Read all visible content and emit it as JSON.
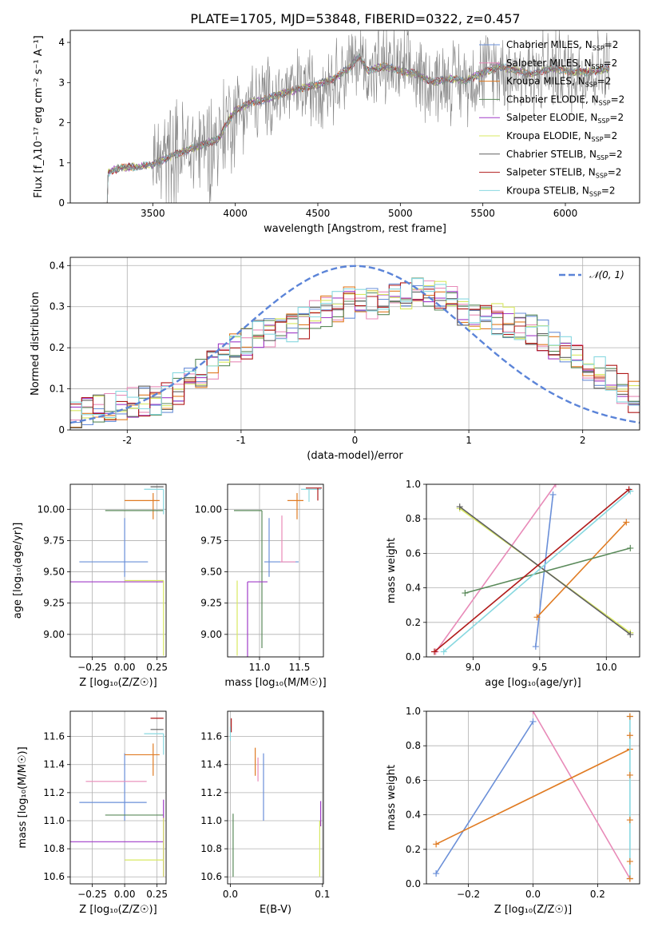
{
  "figure": {
    "title": "PLATE=1705, MJD=53848, FIBERID=0322, z=0.457"
  },
  "chart_data": [
    {
      "id": "spectrum",
      "type": "line",
      "xlabel": "wavelength [Angstrom, rest frame]",
      "ylabel": "Flux [f_λ 10^-17 erg cm^-2 s^-1 A^-1]",
      "xlim": [
        3000,
        6450
      ],
      "ylim": [
        0,
        4.3
      ],
      "xticks": [
        3500,
        4000,
        4500,
        5000,
        5500,
        6000
      ],
      "yticks": [
        0,
        1,
        2,
        3,
        4
      ],
      "grid": false,
      "legend_position": "top-right",
      "data_color": "#808080",
      "data_trend": {
        "x": [
          3200,
          3230,
          3300,
          3400,
          3500,
          3600,
          3700,
          3800,
          3900,
          3950,
          4000,
          4100,
          4200,
          4300,
          4400,
          4500,
          4600,
          4700,
          4750,
          4800,
          4900,
          5000,
          5100,
          5200,
          5300,
          5400,
          5500,
          5600,
          5700,
          5800,
          5900,
          6000,
          6100,
          6200,
          6270
        ],
        "y": [
          0.0,
          0.75,
          0.88,
          0.9,
          0.95,
          1.15,
          1.3,
          1.45,
          1.6,
          2.0,
          2.3,
          2.5,
          2.6,
          2.75,
          2.85,
          2.95,
          3.1,
          3.4,
          3.65,
          3.3,
          3.4,
          3.3,
          3.2,
          3.0,
          3.1,
          3.05,
          3.25,
          3.4,
          3.3,
          3.2,
          3.35,
          3.3,
          3.25,
          3.3,
          3.35
        ]
      },
      "series": [
        {
          "name": "Chabrier MILES, N_SSP=2",
          "color": "#6a8fd8"
        },
        {
          "name": "Salpeter MILES, N_SSP=2",
          "color": "#e88ab8"
        },
        {
          "name": "Kroupa MILES, N_SSP=2",
          "color": "#e07b22"
        },
        {
          "name": "Chabrier ELODIE, N_SSP=2",
          "color": "#5a8a5a"
        },
        {
          "name": "Salpeter ELODIE, N_SSP=2",
          "color": "#a03cc8"
        },
        {
          "name": "Kroupa ELODIE, N_SSP=2",
          "color": "#d8e860"
        },
        {
          "name": "Chabrier STELIB, N_SSP=2",
          "color": "#606060"
        },
        {
          "name": "Salpeter STELIB, N_SSP=2",
          "color": "#b01a1a"
        },
        {
          "name": "Kroupa STELIB, N_SSP=2",
          "color": "#88d8e0"
        }
      ]
    },
    {
      "id": "residuals",
      "type": "line",
      "xlabel": "(data-model)/error",
      "ylabel": "Normed distribution",
      "xlim": [
        -2.5,
        2.5
      ],
      "ylim": [
        0,
        0.42
      ],
      "xticks": [
        -2,
        -1,
        0,
        1,
        2
      ],
      "yticks": [
        0.0,
        0.1,
        0.2,
        0.3,
        0.4
      ],
      "grid": true,
      "legend_position": "top-right",
      "gaussian_label": "𝒩(0, 1)",
      "gaussian_color": "#5b84d8",
      "bin_centers": [
        -2.45,
        -2.35,
        -2.25,
        -2.15,
        -2.05,
        -1.95,
        -1.85,
        -1.75,
        -1.65,
        -1.55,
        -1.45,
        -1.35,
        -1.25,
        -1.15,
        -1.05,
        -0.95,
        -0.85,
        -0.75,
        -0.65,
        -0.55,
        -0.45,
        -0.35,
        -0.25,
        -0.15,
        -0.05,
        0.05,
        0.15,
        0.25,
        0.35,
        0.45,
        0.55,
        0.65,
        0.75,
        0.85,
        0.95,
        1.05,
        1.15,
        1.25,
        1.35,
        1.45,
        1.55,
        1.65,
        1.75,
        1.85,
        1.95,
        2.05,
        2.15,
        2.25,
        2.35,
        2.45
      ],
      "hist_base": [
        0.03,
        0.04,
        0.05,
        0.06,
        0.06,
        0.07,
        0.07,
        0.07,
        0.08,
        0.1,
        0.12,
        0.14,
        0.16,
        0.18,
        0.2,
        0.21,
        0.23,
        0.24,
        0.24,
        0.25,
        0.26,
        0.28,
        0.29,
        0.3,
        0.31,
        0.32,
        0.31,
        0.31,
        0.32,
        0.33,
        0.34,
        0.34,
        0.33,
        0.31,
        0.29,
        0.28,
        0.27,
        0.27,
        0.26,
        0.25,
        0.24,
        0.23,
        0.21,
        0.2,
        0.18,
        0.16,
        0.14,
        0.12,
        0.1,
        0.08
      ],
      "hist_colors": [
        "#6a8fd8",
        "#e88ab8",
        "#e07b22",
        "#5a8a5a",
        "#a03cc8",
        "#d8e860",
        "#606060",
        "#b01a1a",
        "#88d8e0"
      ]
    },
    {
      "id": "age_vs_Z",
      "type": "scatter",
      "xlabel": "Z [log10(Z/Z_sun)]",
      "ylabel": "age  [log10(age/yr)]",
      "xlim": [
        -0.42,
        0.32
      ],
      "ylim": [
        8.82,
        10.2
      ],
      "xticks": [
        -0.25,
        0.0,
        0.25
      ],
      "xtick_labels": [
        "−0.25",
        "0.00",
        "0.25"
      ],
      "yticks": [
        9.0,
        9.25,
        9.5,
        9.75,
        10.0
      ],
      "ytick_labels": [
        "9.00",
        "9.25",
        "9.50",
        "9.75",
        "10.00"
      ],
      "grid": true,
      "points": [
        {
          "x": 0.0,
          "y": 9.58,
          "xerr": [
            0.35,
            0.18
          ],
          "yerr": [
            0.12,
            0.35
          ],
          "color": "#6a8fd8"
        },
        {
          "x": 0.22,
          "y": 10.07,
          "xerr": [
            0.22,
            0.05
          ],
          "yerr": [
            0.15,
            0.06
          ],
          "color": "#e07b22"
        },
        {
          "x": 0.3,
          "y": 9.99,
          "xerr": [
            0.45,
            0.0
          ],
          "yerr": [
            0.0,
            0.0
          ],
          "color": "#5a8a5a"
        },
        {
          "x": 0.3,
          "y": 9.42,
          "xerr": [
            0.72,
            0.0
          ],
          "yerr": [
            0.0,
            0.0
          ],
          "color": "#a03cc8"
        },
        {
          "x": 0.3,
          "y": 9.43,
          "xerr": [
            0.3,
            0.0
          ],
          "yerr": [
            0.6,
            0.0
          ],
          "color": "#d8e860"
        },
        {
          "x": 0.3,
          "y": 10.16,
          "xerr": [
            0.15,
            0.0
          ],
          "yerr": [
            0.2,
            0.0
          ],
          "color": "#88d8e0"
        },
        {
          "x": 0.3,
          "y": 10.18,
          "xerr": [
            0.1,
            0.0
          ],
          "yerr": [
            0.0,
            0.0
          ],
          "color": "#606060"
        }
      ]
    },
    {
      "id": "age_vs_mass",
      "type": "scatter",
      "xlabel": "mass [log10(M/M_sun)]",
      "ylabel": "",
      "xlim": [
        10.6,
        11.8
      ],
      "ylim": [
        8.82,
        10.2
      ],
      "xticks": [
        11.0,
        11.5
      ],
      "xtick_labels": [
        "11.0",
        "11.5"
      ],
      "yticks": [
        9.0,
        9.25,
        9.5,
        9.75,
        10.0
      ],
      "ytick_labels": [
        "9.00",
        "9.25",
        "9.50",
        "9.75",
        "10.00"
      ],
      "grid": true,
      "points": [
        {
          "x": 11.12,
          "y": 9.58,
          "xerr": [
            0.06,
            0.37
          ],
          "yerr": [
            0.12,
            0.35
          ],
          "color": "#6a8fd8"
        },
        {
          "x": 11.28,
          "y": 9.58,
          "xerr": [
            0.02,
            0.17
          ],
          "yerr": [
            0.0,
            0.37
          ],
          "color": "#e88ab8"
        },
        {
          "x": 11.47,
          "y": 10.07,
          "xerr": [
            0.12,
            0.08
          ],
          "yerr": [
            0.15,
            0.06
          ],
          "color": "#e07b22"
        },
        {
          "x": 11.03,
          "y": 9.99,
          "xerr": [
            0.35,
            0.0
          ],
          "yerr": [
            1.1,
            0.0
          ],
          "color": "#5a8a5a"
        },
        {
          "x": 10.85,
          "y": 9.42,
          "xerr": [
            0.0,
            0.25
          ],
          "yerr": [
            0.6,
            0.0
          ],
          "color": "#a03cc8"
        },
        {
          "x": 10.72,
          "y": 9.43,
          "xerr": [
            0.0,
            0.0
          ],
          "yerr": [
            0.6,
            0.0
          ],
          "color": "#d8e860"
        },
        {
          "x": 11.62,
          "y": 10.16,
          "xerr": [
            0.1,
            0.15
          ],
          "yerr": [
            0.1,
            0.0
          ],
          "color": "#88d8e0"
        },
        {
          "x": 11.73,
          "y": 10.17,
          "xerr": [
            0.15,
            0.05
          ],
          "yerr": [
            0.1,
            0.0
          ],
          "color": "#b01a1a"
        }
      ]
    },
    {
      "id": "weight_vs_age",
      "type": "line",
      "xlabel": "age  [log10(age/yr)]",
      "ylabel": "mass weight",
      "xlim": [
        8.65,
        10.25
      ],
      "ylim": [
        0.0,
        1.0
      ],
      "xticks": [
        9.0,
        9.5,
        10.0
      ],
      "xtick_labels": [
        "9.0",
        "9.5",
        "10.0"
      ],
      "yticks": [
        0.0,
        0.2,
        0.4,
        0.6,
        0.8,
        1.0
      ],
      "ytick_labels": [
        "0.0",
        "0.2",
        "0.4",
        "0.6",
        "0.8",
        "1.0"
      ],
      "grid": true,
      "series": [
        {
          "color": "#e88ab8",
          "x": [
            8.72,
            9.62
          ],
          "y": [
            0.03,
            1.0
          ]
        },
        {
          "color": "#6a8fd8",
          "x": [
            9.47,
            9.6
          ],
          "y": [
            0.06,
            0.94
          ]
        },
        {
          "color": "#e07b22",
          "x": [
            9.48,
            10.15
          ],
          "y": [
            0.23,
            0.78
          ]
        },
        {
          "color": "#5a8a5a",
          "x": [
            8.94,
            10.18
          ],
          "y": [
            0.37,
            0.63
          ]
        },
        {
          "color": "#d8e860",
          "x": [
            8.9,
            10.18
          ],
          "y": [
            0.86,
            0.14
          ]
        },
        {
          "color": "#606060",
          "x": [
            8.9,
            10.18
          ],
          "y": [
            0.87,
            0.13
          ]
        },
        {
          "color": "#88d8e0",
          "x": [
            8.78,
            10.18
          ],
          "y": [
            0.03,
            0.96
          ]
        },
        {
          "color": "#b01a1a",
          "x": [
            8.71,
            10.17
          ],
          "y": [
            0.03,
            0.97
          ]
        }
      ]
    },
    {
      "id": "mass_vs_Z",
      "type": "scatter",
      "xlabel": "Z [log10(Z/Z_sun)]",
      "ylabel": "mass [log10(M/M_sun)]",
      "xlim": [
        -0.42,
        0.32
      ],
      "ylim": [
        10.55,
        11.78
      ],
      "xticks": [
        -0.25,
        0.0,
        0.25
      ],
      "xtick_labels": [
        "−0.25",
        "0.00",
        "0.25"
      ],
      "yticks": [
        10.6,
        10.8,
        11.0,
        11.2,
        11.4,
        11.6
      ],
      "ytick_labels": [
        "10.6",
        "10.8",
        "11.0",
        "11.2",
        "11.4",
        "11.6"
      ],
      "grid": true,
      "points": [
        {
          "x": 0.0,
          "y": 11.13,
          "xerr": [
            0.35,
            0.17
          ],
          "yerr": [
            0.13,
            0.35
          ],
          "color": "#6a8fd8"
        },
        {
          "x": 0.0,
          "y": 11.28,
          "xerr": [
            0.3,
            0.17
          ],
          "yerr": [
            0.0,
            0.0
          ],
          "color": "#e88ab8"
        },
        {
          "x": 0.22,
          "y": 11.47,
          "xerr": [
            0.22,
            0.05
          ],
          "yerr": [
            0.15,
            0.08
          ],
          "color": "#e07b22"
        },
        {
          "x": 0.3,
          "y": 11.04,
          "xerr": [
            0.45,
            0.0
          ],
          "yerr": [
            0.0,
            0.0
          ],
          "color": "#5a8a5a"
        },
        {
          "x": 0.3,
          "y": 10.85,
          "xerr": [
            0.72,
            0.0
          ],
          "yerr": [
            0.25,
            0.3
          ],
          "color": "#a03cc8"
        },
        {
          "x": 0.3,
          "y": 10.72,
          "xerr": [
            0.3,
            0.0
          ],
          "yerr": [
            0.12,
            0.3
          ],
          "color": "#d8e860"
        },
        {
          "x": 0.3,
          "y": 11.62,
          "xerr": [
            0.15,
            0.0
          ],
          "yerr": [
            0.15,
            0.0
          ],
          "color": "#88d8e0"
        },
        {
          "x": 0.3,
          "y": 11.73,
          "xerr": [
            0.1,
            0.0
          ],
          "yerr": [
            0.0,
            0.0
          ],
          "color": "#b01a1a"
        },
        {
          "x": 0.3,
          "y": 11.65,
          "xerr": [
            0.1,
            0.0
          ],
          "yerr": [
            0.0,
            0.0
          ],
          "color": "#606060"
        }
      ]
    },
    {
      "id": "mass_vs_ebv",
      "type": "scatter",
      "xlabel": "E(B-V)",
      "ylabel": "",
      "xlim": [
        -0.003,
        0.101
      ],
      "ylim": [
        10.55,
        11.78
      ],
      "xticks": [
        0.0,
        0.1
      ],
      "xtick_labels": [
        "0.0",
        "0.1"
      ],
      "yticks": [
        10.6,
        10.8,
        11.0,
        11.2,
        11.4,
        11.6
      ],
      "ytick_labels": [
        "10.6",
        "10.8",
        "11.0",
        "11.2",
        "11.4",
        "11.6"
      ],
      "grid": true,
      "points": [
        {
          "x": 0.036,
          "y": 11.48,
          "xerr": [
            0.0,
            0.0
          ],
          "yerr": [
            0.48,
            0.0
          ],
          "color": "#6a8fd8"
        },
        {
          "x": 0.03,
          "y": 11.4,
          "xerr": [
            0.0,
            0.0
          ],
          "yerr": [
            0.12,
            0.05
          ],
          "color": "#e88ab8"
        },
        {
          "x": 0.027,
          "y": 11.42,
          "xerr": [
            0.0,
            0.0
          ],
          "yerr": [
            0.1,
            0.1
          ],
          "color": "#e07b22"
        },
        {
          "x": 0.003,
          "y": 10.85,
          "xerr": [
            0.0,
            0.0
          ],
          "yerr": [
            0.25,
            0.2
          ],
          "color": "#5a8a5a"
        },
        {
          "x": 0.098,
          "y": 11.06,
          "xerr": [
            0.0,
            0.0
          ],
          "yerr": [
            0.1,
            0.08
          ],
          "color": "#a03cc8"
        },
        {
          "x": 0.097,
          "y": 10.8,
          "xerr": [
            0.0,
            0.0
          ],
          "yerr": [
            0.2,
            0.2
          ],
          "color": "#d8e860"
        },
        {
          "x": 0.0,
          "y": 11.62,
          "xerr": [
            0.0,
            0.0
          ],
          "yerr": [
            0.05,
            0.05
          ],
          "color": "#88d8e0"
        },
        {
          "x": 0.001,
          "y": 11.68,
          "xerr": [
            0.0,
            0.0
          ],
          "yerr": [
            0.05,
            0.05
          ],
          "color": "#b01a1a"
        }
      ]
    },
    {
      "id": "weight_vs_Z",
      "type": "line",
      "xlabel": "Z [log10(Z/Z_sun)]",
      "ylabel": "mass weight",
      "xlim": [
        -0.33,
        0.33
      ],
      "ylim": [
        0.0,
        1.0
      ],
      "xticks": [
        -0.2,
        0.0,
        0.2
      ],
      "xtick_labels": [
        "−0.2",
        "0.0",
        "0.2"
      ],
      "yticks": [
        0.0,
        0.2,
        0.4,
        0.6,
        0.8,
        1.0
      ],
      "ytick_labels": [
        "0.0",
        "0.2",
        "0.4",
        "0.6",
        "0.8",
        "1.0"
      ],
      "grid": true,
      "series": [
        {
          "color": "#6a8fd8",
          "x": [
            -0.3,
            0.0
          ],
          "y": [
            0.06,
            0.94
          ]
        },
        {
          "color": "#e88ab8",
          "x": [
            0.0,
            0.3
          ],
          "y": [
            1.0,
            0.03
          ]
        },
        {
          "color": "#e07b22",
          "x": [
            -0.3,
            0.3
          ],
          "y": [
            0.23,
            0.78
          ]
        },
        {
          "color": "#88d8e0",
          "x": [
            0.3,
            0.3
          ],
          "y": [
            0.03,
            0.97
          ]
        }
      ],
      "edge_markers": {
        "x": 0.3,
        "y": [
          0.03,
          0.13,
          0.37,
          0.63,
          0.86,
          0.97
        ],
        "color": "#e07b22"
      }
    }
  ]
}
